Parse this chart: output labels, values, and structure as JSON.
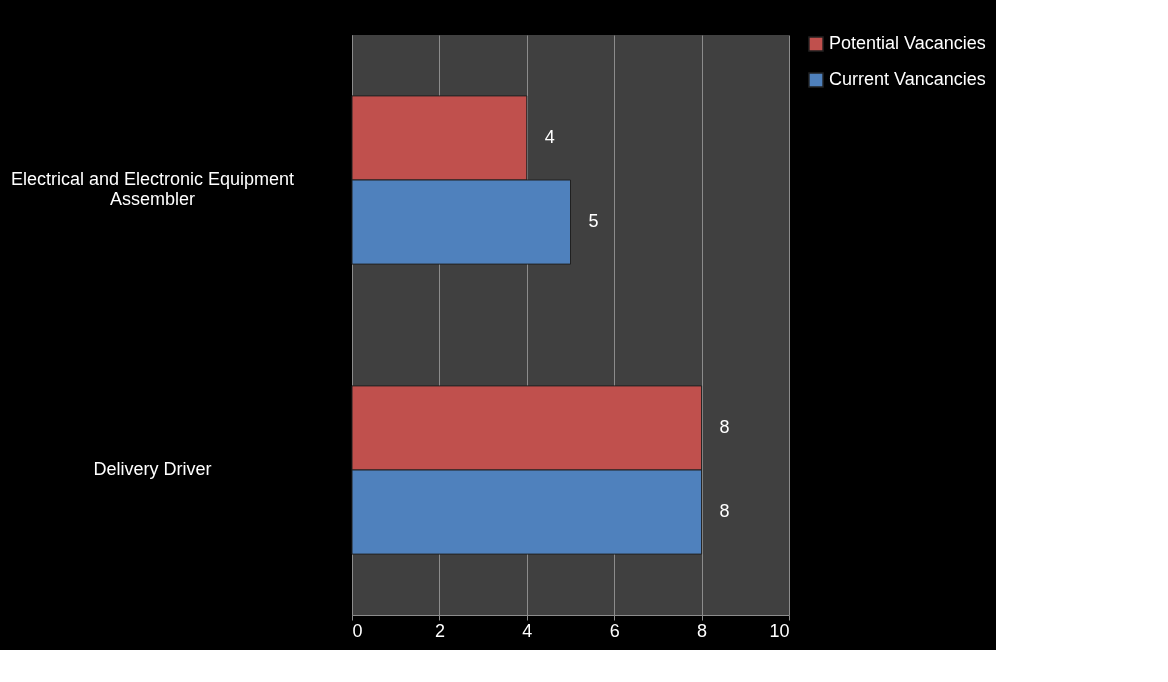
{
  "chart_data": {
    "type": "bar",
    "orientation": "horizontal",
    "categories": [
      "Electrical and Electronic Equipment Assembler",
      "Delivery Driver"
    ],
    "series": [
      {
        "name": "Potential Vacancies",
        "color": "#c0504d",
        "values": [
          4,
          8
        ]
      },
      {
        "name": "Current Vancancies",
        "color": "#4f81bd",
        "values": [
          5,
          8
        ]
      }
    ],
    "xlim": [
      0,
      10
    ],
    "xticks": [
      0,
      2,
      4,
      6,
      8,
      10
    ],
    "grid": "x",
    "data_labels": true,
    "legend": "right"
  }
}
